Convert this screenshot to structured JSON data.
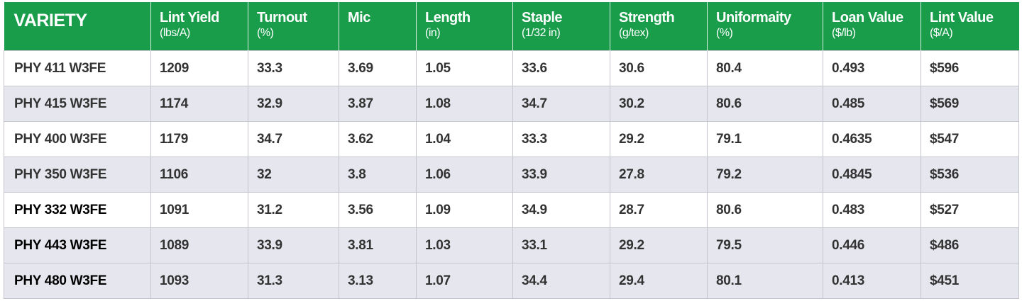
{
  "table": {
    "header": [
      {
        "title": "VARIETY"
      },
      {
        "title": "Lint Yield",
        "unit": "(lbs/A)"
      },
      {
        "title": "Turnout",
        "unit": "(%)"
      },
      {
        "title": "Mic"
      },
      {
        "title": "Length",
        "unit": "(in)"
      },
      {
        "title": "Staple",
        "unit": "(1/32 in)"
      },
      {
        "title": "Strength",
        "unit": "(g/tex)"
      },
      {
        "title": "Uniformaity",
        "unit": "(%)"
      },
      {
        "title": "Loan Value",
        "unit": "($/lb)"
      },
      {
        "title": "Lint Value",
        "unit": "($/A)"
      }
    ],
    "rows": [
      [
        "PHY 411 W3FE",
        "1209",
        "33.3",
        "3.69",
        "1.05",
        "33.6",
        "30.6",
        "80.4",
        "0.493",
        "$596"
      ],
      [
        "PHY 415 W3FE",
        "1174",
        "32.9",
        "3.87",
        "1.08",
        "34.7",
        "30.2",
        "80.6",
        "0.485",
        "$569"
      ],
      [
        "PHY 400 W3FE",
        "1179",
        "34.7",
        "3.62",
        "1.04",
        "33.3",
        "29.2",
        "79.1",
        "0.4635",
        "$547"
      ],
      [
        "PHY 350 W3FE",
        "1106",
        "32",
        "3.8",
        "1.06",
        "33.9",
        "27.8",
        "79.2",
        "0.4845",
        "$536"
      ],
      [
        "PHY 332 W3FE",
        "1091",
        "31.2",
        "3.56",
        "1.09",
        "34.9",
        "28.7",
        "80.6",
        "0.483",
        "$527"
      ],
      [
        "PHY 443 W3FE",
        "1089",
        "33.9",
        "3.81",
        "1.03",
        "33.1",
        "29.2",
        "79.5",
        "0.446",
        "$486"
      ],
      [
        "PHY 480 W3FE",
        "1093",
        "31.3",
        "3.13",
        "1.07",
        "34.4",
        "29.4",
        "80.1",
        "0.413",
        "$451"
      ]
    ]
  }
}
